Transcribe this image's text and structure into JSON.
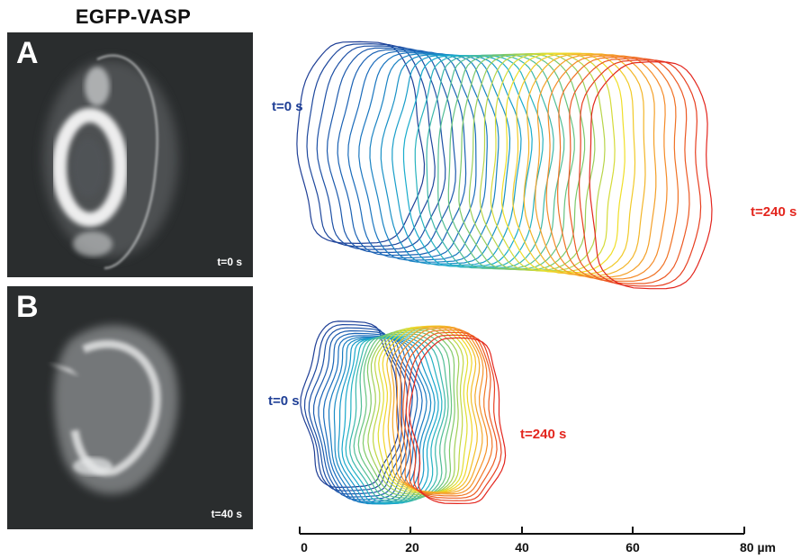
{
  "heading": "EGFP-VASP",
  "panel_a": {
    "letter": "A",
    "time": "t=0 s"
  },
  "panel_b": {
    "letter": "B",
    "time": "t=40 s"
  },
  "outlines_top": {
    "start_label": "t=0 s",
    "end_label": "t=240 s",
    "frames": 28
  },
  "outlines_bottom": {
    "start_label": "t=0 s",
    "end_label": "t=240 s",
    "frames": 26
  },
  "scale_bar": {
    "ticks": [
      "0",
      "20",
      "40",
      "60",
      "80 µm"
    ]
  },
  "colors": {
    "start": "#1f3f96",
    "end": "#e3261e",
    "panel_bg": "#2a2d2e"
  }
}
